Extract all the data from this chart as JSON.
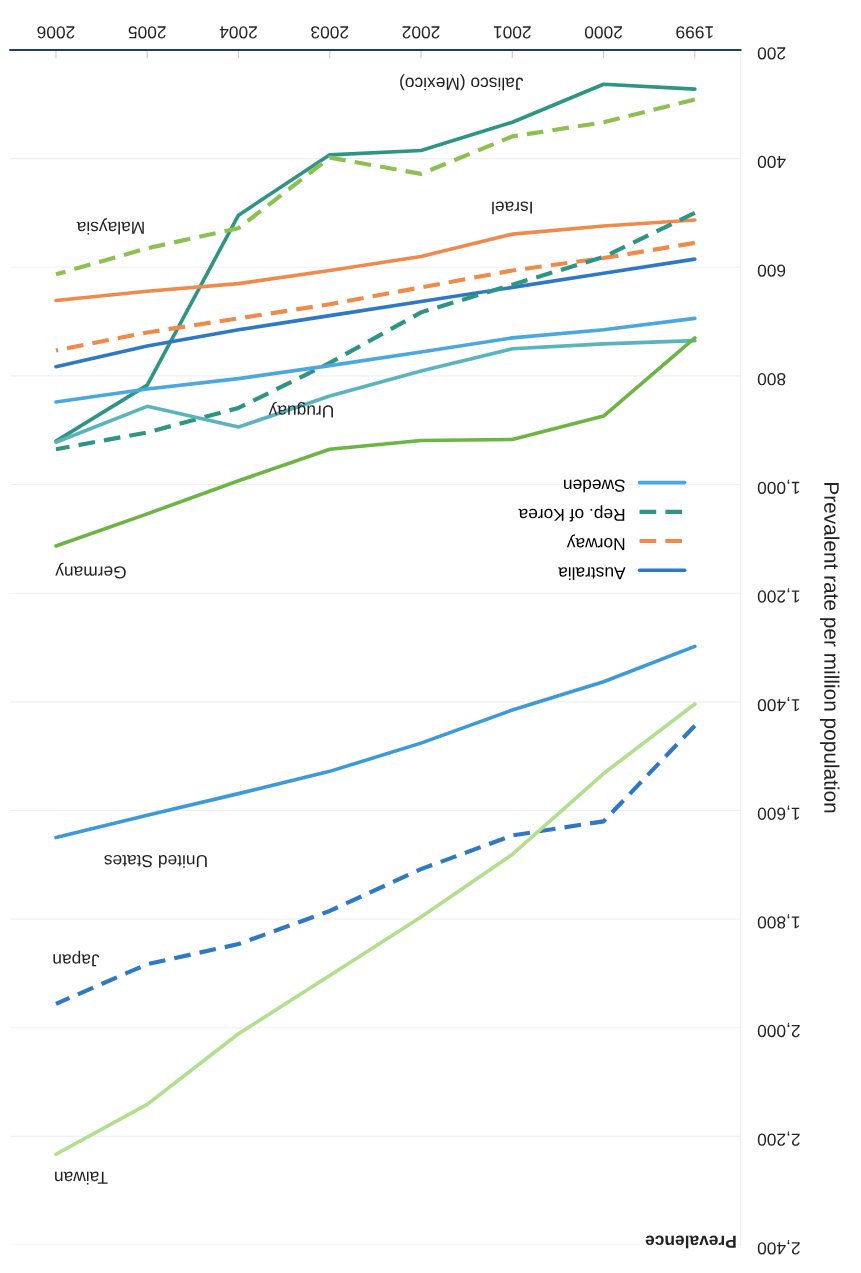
{
  "chart_data": {
    "type": "line",
    "title": "Prevalence",
    "ylabel": "Prevalent rate per million population",
    "x": [
      1999,
      2000,
      2001,
      2002,
      2003,
      2004,
      2005,
      2006
    ],
    "xlim": [
      2006.5,
      1998.5
    ],
    "xticks": [
      1999,
      2000,
      2001,
      2002,
      2003,
      2004,
      2005,
      2006
    ],
    "ylim": [
      2400,
      200
    ],
    "yticks": [
      200,
      400,
      600,
      800,
      {
        "value": 1000,
        "label": "1,000"
      },
      {
        "value": 1200,
        "label": "1,200"
      },
      {
        "value": 1400,
        "label": "1,400"
      },
      {
        "value": 1600,
        "label": "1,600"
      },
      {
        "value": 1800,
        "label": "1,800"
      },
      {
        "value": 2000,
        "label": "2,000"
      },
      {
        "value": 2200,
        "label": "2,200"
      },
      {
        "value": 2400,
        "label": "2,400"
      }
    ],
    "grid": "y",
    "legend": "right",
    "marker": "none",
    "series": [
      {
        "color": "#2e9484",
        "line_style": "solid",
        "values": [
          272,
          263,
          333,
          385,
          393,
          504,
          817,
          920
        ]
      },
      {
        "color": "#8cc152",
        "line_style": "dashed",
        "values": [
          291,
          333,
          359,
          428,
          398,
          528,
          565,
          613
        ]
      },
      {
        "color": "#f08a4b",
        "line_style": "solid",
        "values": [
          513,
          524,
          539,
          580,
          606,
          630,
          644,
          661
        ]
      },
      {
        "name": "Australia",
        "color": "#2f78c4",
        "line_style": "solid",
        "values": [
          585,
          611,
          637,
          663,
          689,
          715,
          745,
          783
        ]
      },
      {
        "name": "Norway",
        "color": "#f08a4b",
        "line_style": "dashed",
        "values": [
          555,
          583,
          606,
          637,
          668,
          694,
          720,
          753
        ]
      },
      {
        "name": "Rep. of Korea",
        "color": "#2e9484",
        "line_style": "dashed",
        "values": [
          500,
          581,
          632,
          683,
          776,
          859,
          904,
          935
        ]
      },
      {
        "name": "Sweden",
        "color": "#4aa8de",
        "line_style": "solid",
        "values": [
          694,
          715,
          730,
          756,
          781,
          805,
          824,
          848
        ]
      },
      {
        "color": "#5ab4bd",
        "line_style": "solid",
        "values": [
          735,
          741,
          750,
          791,
          837,
          894,
          856,
          922
        ]
      },
      {
        "color": "#6cb443",
        "line_style": "solid",
        "values": [
          730,
          874,
          917,
          919,
          935,
          993,
          1054,
          1113
        ]
      },
      {
        "color": "#3d9ad8",
        "line_style": "solid",
        "values": [
          1298,
          1363,
          1415,
          1476,
          1528,
          1569,
          1609,
          1650
        ]
      },
      {
        "color": "#2f78c4",
        "line_style": "dashed",
        "values": [
          1444,
          1620,
          1646,
          1708,
          1785,
          1846,
          1883,
          1956
        ]
      },
      {
        "color": "#b0e08e",
        "line_style": "solid",
        "values": [
          1404,
          1532,
          1681,
          1796,
          1904,
          2011,
          2141,
          2233
        ]
      }
    ],
    "annotations": [
      {
        "text": "Jalisco (Mexico)",
        "x": 2001,
        "y": 333
      },
      {
        "text": "Malaysia",
        "x": 2006,
        "y": 613
      },
      {
        "text": "Israel",
        "x": 2001,
        "y": 539
      },
      {
        "text": "Uruguay",
        "x": 2004,
        "y": 894
      },
      {
        "text": "Germany",
        "x": 2006,
        "y": 1113
      },
      {
        "text": "United States",
        "x": 2006,
        "y": 1650
      },
      {
        "text": "Japan",
        "x": 2006,
        "y": 1956
      },
      {
        "text": "Taiwan",
        "x": 2006,
        "y": 2233
      }
    ]
  }
}
